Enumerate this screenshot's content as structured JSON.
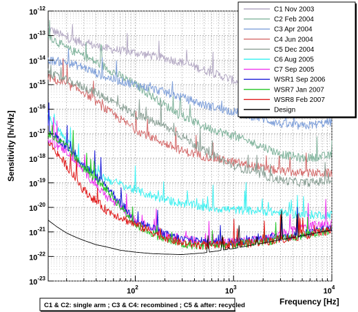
{
  "chart_data": {
    "type": "line",
    "title": "",
    "xlabel": "Frequency [Hz]",
    "ylabel": "Sensitivity [h/√Hz]",
    "x_scale": "log",
    "y_scale": "log",
    "xlim": [
      13,
      10000
    ],
    "ylim": [
      1e-23,
      1e-12
    ],
    "grid": true,
    "legend_position": "top-right",
    "x_tick_labels": [
      {
        "value": 100,
        "base": "10",
        "exp": "2"
      },
      {
        "value": 1000,
        "base": "10",
        "exp": "3"
      },
      {
        "value": 10000,
        "base": "10",
        "exp": "4"
      }
    ],
    "y_tick_labels": [
      {
        "value": 1e-12,
        "base": "10",
        "exp": "-12"
      },
      {
        "value": 1e-13,
        "base": "10",
        "exp": "-13"
      },
      {
        "value": 1e-14,
        "base": "10",
        "exp": "-14"
      },
      {
        "value": 1e-15,
        "base": "10",
        "exp": "-15"
      },
      {
        "value": 1e-16,
        "base": "10",
        "exp": "-16"
      },
      {
        "value": 1e-17,
        "base": "10",
        "exp": "-17"
      },
      {
        "value": 1e-18,
        "base": "10",
        "exp": "-18"
      },
      {
        "value": 1e-19,
        "base": "10",
        "exp": "-19"
      },
      {
        "value": 1e-20,
        "base": "10",
        "exp": "-20"
      },
      {
        "value": 1e-21,
        "base": "10",
        "exp": "-21"
      },
      {
        "value": 1e-22,
        "base": "10",
        "exp": "-22"
      },
      {
        "value": 1e-23,
        "base": "10",
        "exp": "-23"
      }
    ],
    "annotation": "C1 & C2: single arm ; C3 & C4: recombined ; C5 & after: recycled",
    "series": [
      {
        "name": "C1 Nov 2003",
        "color": "#b4a9c4",
        "x": [
          13,
          20,
          30,
          50,
          100,
          200,
          300,
          500,
          1000,
          2000,
          3000,
          5000,
          10000
        ],
        "y": [
          2e-13,
          8e-14,
          5e-14,
          3e-14,
          2e-14,
          1.2e-14,
          8e-15,
          4e-15,
          1.5e-15,
          6e-16,
          3.5e-16,
          2.5e-16,
          2e-16
        ]
      },
      {
        "name": "C2 Feb 2004",
        "color": "#7fb39b",
        "x": [
          13,
          20,
          30,
          50,
          100,
          200,
          300,
          500,
          1000,
          2000,
          3000,
          5000,
          10000
        ],
        "y": [
          1e-13,
          3e-14,
          1.5e-14,
          5e-15,
          1e-15,
          1.5e-16,
          5e-17,
          2e-17,
          8e-18,
          3e-18,
          1.5e-18,
          1e-18,
          1.3e-18
        ]
      },
      {
        "name": "C3 Apr 2004",
        "color": "#7e9fd9",
        "x": [
          13,
          20,
          30,
          50,
          100,
          200,
          300,
          500,
          1000,
          2000,
          3000,
          5000,
          10000
        ],
        "y": [
          1e-14,
          8e-15,
          5e-15,
          2e-15,
          1e-15,
          5e-16,
          3e-16,
          1.5e-16,
          8e-17,
          4e-17,
          2.5e-17,
          2e-17,
          3e-17
        ]
      },
      {
        "name": "C4 Jun 2004",
        "color": "#d46a6a",
        "x": [
          13,
          20,
          30,
          50,
          100,
          200,
          300,
          500,
          1000,
          2000,
          3000,
          5000,
          10000
        ],
        "y": [
          2e-15,
          1e-15,
          5e-16,
          1e-16,
          1.5e-17,
          4e-18,
          2e-18,
          1.2e-18,
          7e-19,
          4e-19,
          3e-19,
          2.5e-19,
          2.5e-19
        ]
      },
      {
        "name": "C5 Dec 2004",
        "color": "#8aa095",
        "x": [
          13,
          20,
          30,
          50,
          100,
          200,
          300,
          500,
          1000,
          2000,
          3000,
          5000,
          10000
        ],
        "y": [
          3e-15,
          1.5e-15,
          8e-16,
          3e-16,
          6e-17,
          2e-17,
          8e-18,
          2e-18,
          5e-19,
          2e-19,
          1.3e-19,
          1e-19,
          1.2e-19
        ]
      },
      {
        "name": "C6 Aug 2005",
        "color": "#3df0f0",
        "x": [
          13,
          20,
          30,
          50,
          100,
          200,
          300,
          500,
          1000,
          2000,
          3000,
          5000,
          10000
        ],
        "y": [
          5e-17,
          5e-18,
          5e-19,
          1.5e-19,
          5e-20,
          2e-20,
          1.5e-20,
          1e-20,
          8e-21,
          7e-21,
          6e-21,
          5e-21,
          5e-21
        ]
      },
      {
        "name": "C7 Sep 2005",
        "color": "#ee33ee",
        "x": [
          13,
          20,
          30,
          50,
          100,
          200,
          300,
          500,
          1000,
          2000,
          3000,
          5000,
          10000
        ],
        "y": [
          5e-18,
          2e-18,
          3e-19,
          3e-20,
          3e-21,
          8e-22,
          5e-22,
          4e-22,
          4e-22,
          5e-22,
          8e-22,
          1.5e-21,
          2.5e-21
        ]
      },
      {
        "name": "WSR1 Sep 2006",
        "color": "#1a1ad8",
        "x": [
          13,
          20,
          30,
          50,
          100,
          200,
          300,
          500,
          1000,
          2000,
          3000,
          5000,
          10000
        ],
        "y": [
          1.5e-17,
          3e-18,
          5e-19,
          8e-20,
          3e-21,
          8e-22,
          5e-22,
          4e-22,
          4e-22,
          5e-22,
          6e-22,
          8e-22,
          1.5e-21
        ]
      },
      {
        "name": "WSR7 Jan 2007",
        "color": "#22c422",
        "x": [
          13,
          20,
          30,
          50,
          100,
          200,
          300,
          500,
          1000,
          2000,
          3000,
          5000,
          10000
        ],
        "y": [
          1e-17,
          3e-18,
          4e-19,
          6e-20,
          2e-21,
          5e-22,
          3e-22,
          2.8e-22,
          3e-22,
          4e-22,
          5e-22,
          7e-22,
          1.2e-21
        ]
      },
      {
        "name": "WSR8 Feb 2007",
        "color": "#e01818",
        "x": [
          13,
          20,
          30,
          50,
          100,
          200,
          300,
          500,
          1000,
          2000,
          3000,
          5000,
          10000
        ],
        "y": [
          5e-18,
          5e-19,
          5e-20,
          8e-21,
          2e-21,
          6e-22,
          3.5e-22,
          2.8e-22,
          3e-22,
          4e-22,
          5e-22,
          7e-22,
          1.2e-21
        ]
      },
      {
        "name": "Design",
        "color": "#000000",
        "x": [
          13,
          16,
          20,
          25,
          30,
          40,
          50,
          70,
          100,
          150,
          200,
          300,
          500,
          1000,
          2000,
          3000,
          5000,
          10000
        ],
        "y": [
          3e-21,
          1.6e-21,
          9e-22,
          6e-22,
          4.5e-22,
          3e-22,
          2.5e-22,
          1.8e-22,
          1.5e-22,
          1.3e-22,
          1.25e-22,
          1.2e-22,
          1.4e-22,
          2.1e-22,
          3.5e-22,
          4.8e-22,
          7e-22,
          1.2e-21
        ]
      }
    ]
  }
}
